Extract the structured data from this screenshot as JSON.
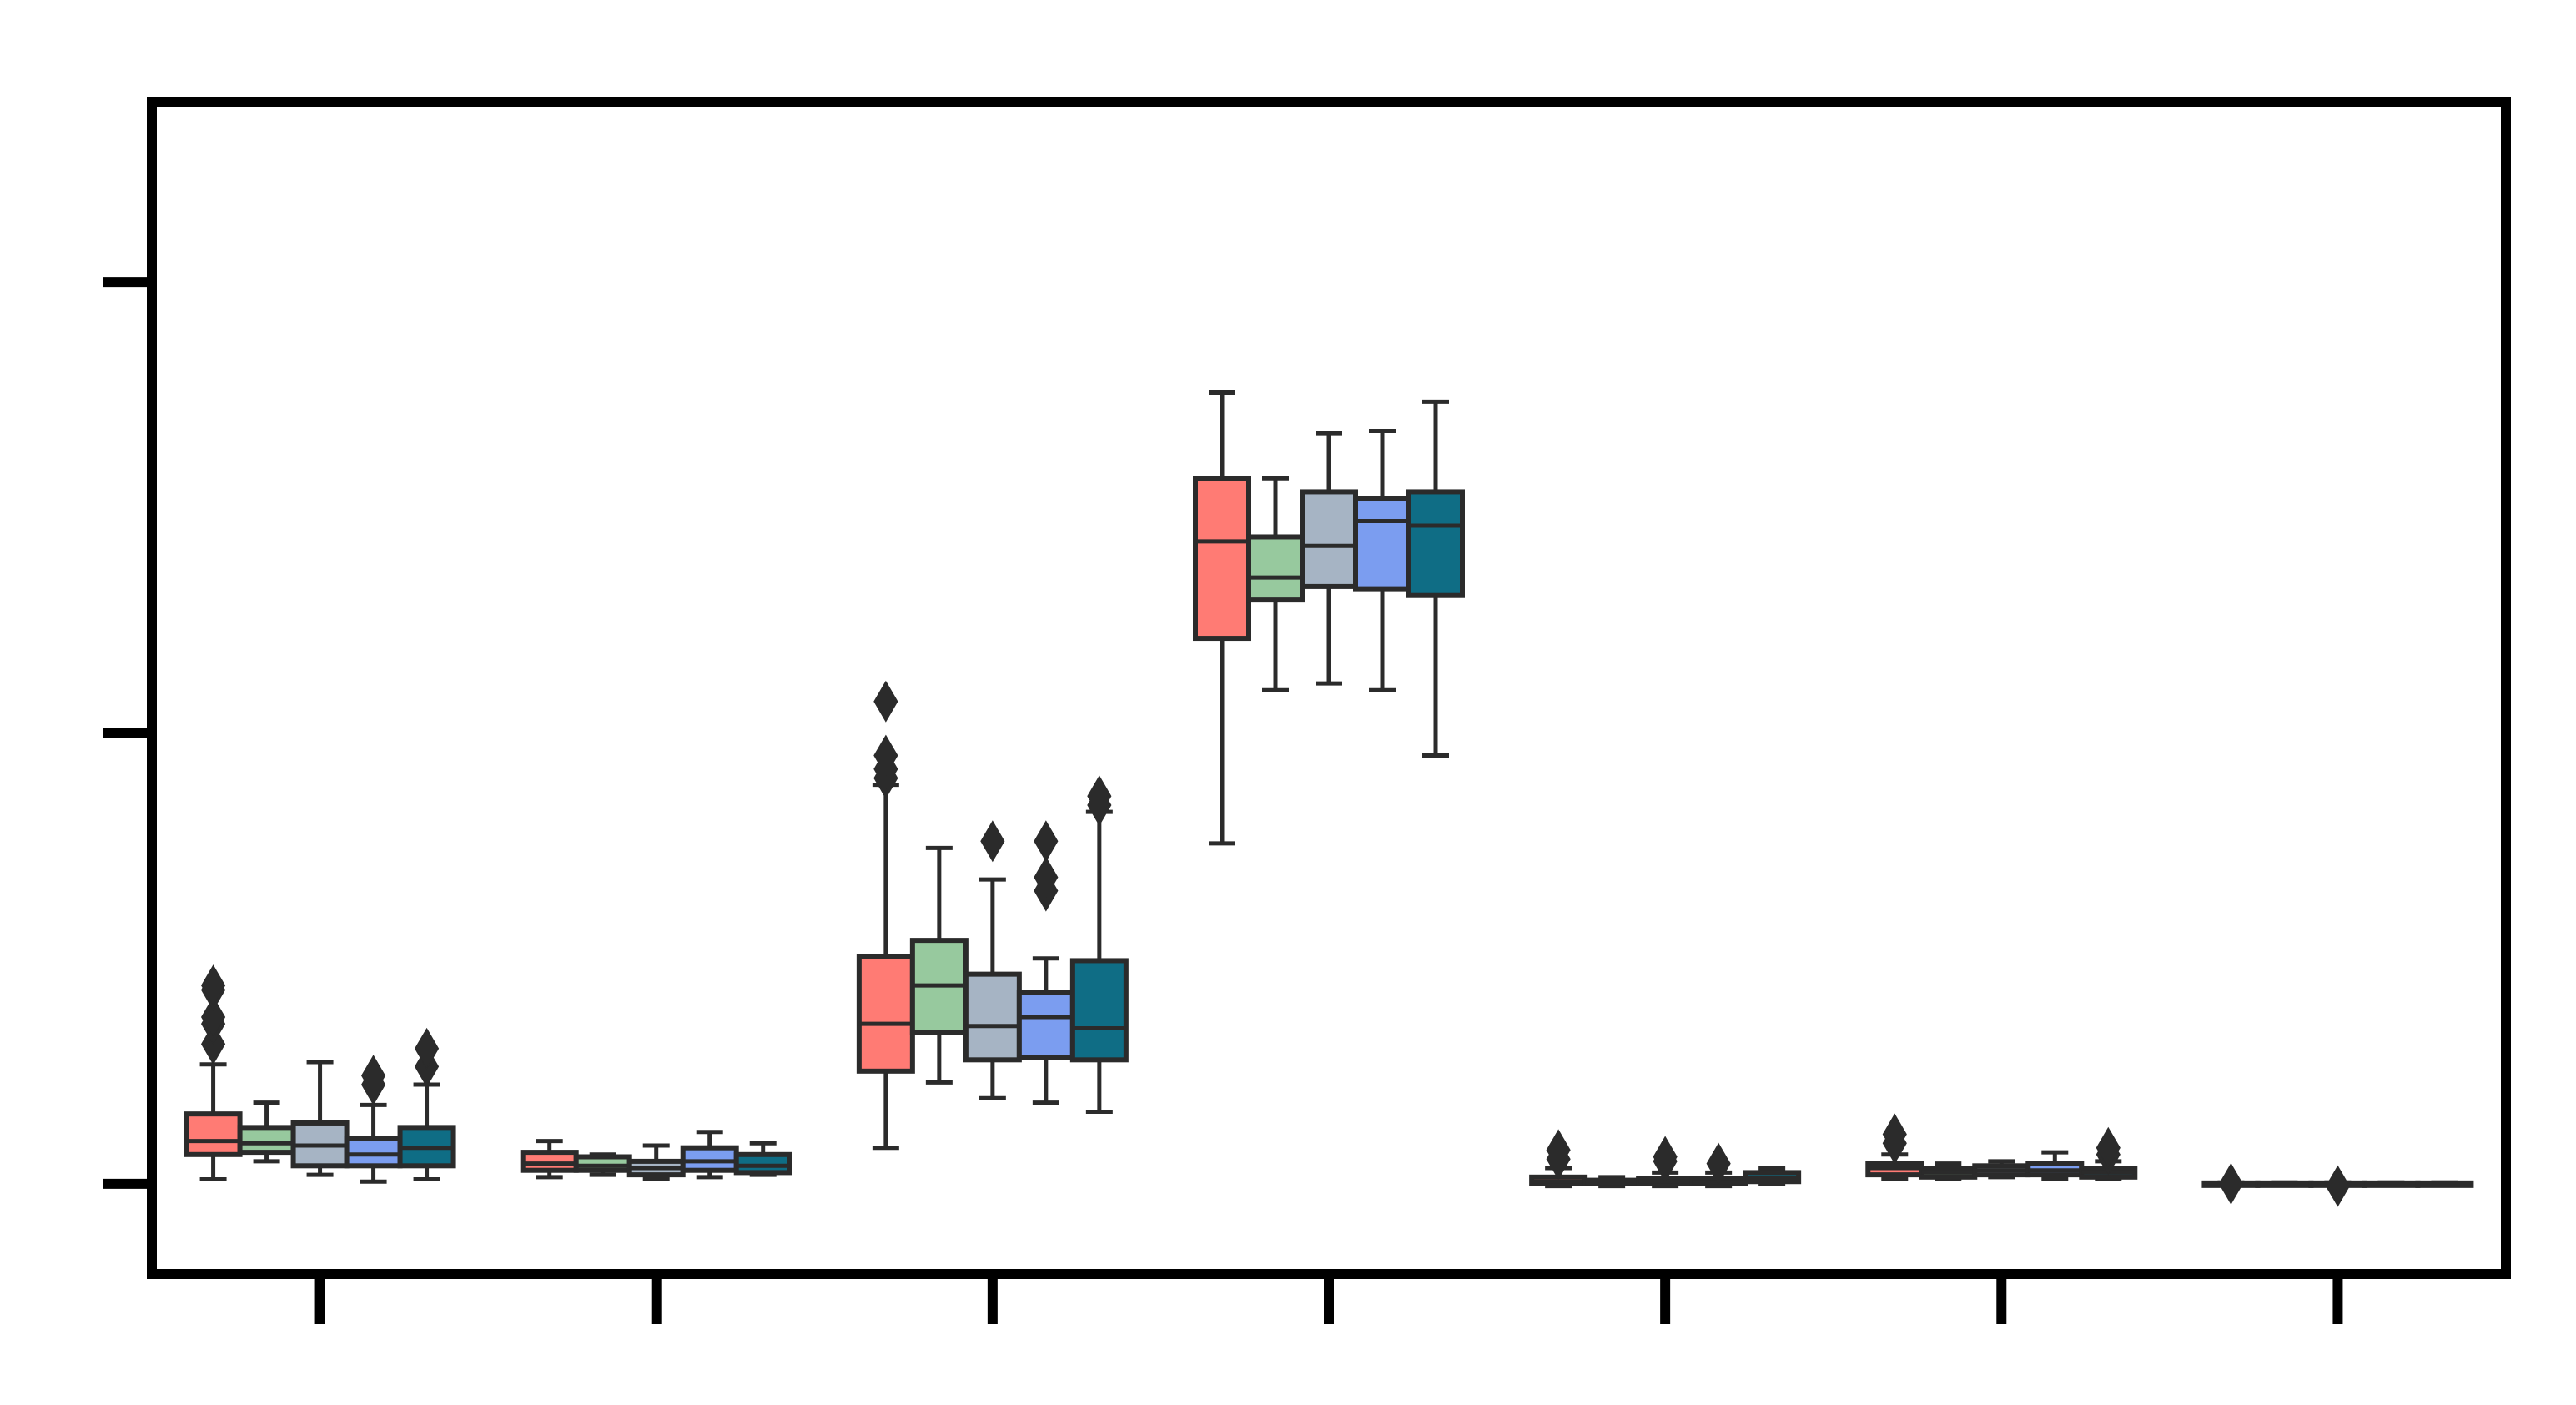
{
  "chart_data": {
    "type": "box",
    "title": "",
    "xlabel": "",
    "ylabel": "",
    "xticks": 7,
    "yticks": [
      0,
      1,
      2
    ],
    "ylim": [
      -0.2,
      2.4
    ],
    "grid": false,
    "legend": "none",
    "colors": [
      "#ff7b74",
      "#97c99e",
      "#a6b4c4",
      "#7b9df0",
      "#0f6d85"
    ],
    "groups": [
      {
        "boxes": [
          {
            "whisker_low": 0.01,
            "q1": 0.065,
            "median": 0.095,
            "q3": 0.155,
            "whisker_high": 0.265,
            "outliers": [
              0.31,
              0.355,
              0.37,
              0.43,
              0.44
            ]
          },
          {
            "whisker_low": 0.05,
            "q1": 0.07,
            "median": 0.09,
            "q3": 0.125,
            "whisker_high": 0.18,
            "outliers": []
          },
          {
            "whisker_low": 0.02,
            "q1": 0.04,
            "median": 0.085,
            "q3": 0.135,
            "whisker_high": 0.27,
            "outliers": []
          },
          {
            "whisker_low": 0.005,
            "q1": 0.04,
            "median": 0.065,
            "q3": 0.1,
            "whisker_high": 0.175,
            "outliers": [
              0.22,
              0.24
            ]
          },
          {
            "whisker_low": 0.01,
            "q1": 0.04,
            "median": 0.08,
            "q3": 0.125,
            "whisker_high": 0.22,
            "outliers": [
              0.26,
              0.3
            ]
          }
        ]
      },
      {
        "boxes": [
          {
            "whisker_low": 0.015,
            "q1": 0.03,
            "median": 0.045,
            "q3": 0.07,
            "whisker_high": 0.095,
            "outliers": []
          },
          {
            "whisker_low": 0.02,
            "q1": 0.03,
            "median": 0.04,
            "q3": 0.06,
            "whisker_high": 0.065,
            "outliers": []
          },
          {
            "whisker_low": 0.01,
            "q1": 0.02,
            "median": 0.035,
            "q3": 0.05,
            "whisker_high": 0.085,
            "outliers": []
          },
          {
            "whisker_low": 0.015,
            "q1": 0.03,
            "median": 0.05,
            "q3": 0.08,
            "whisker_high": 0.115,
            "outliers": []
          },
          {
            "whisker_low": 0.02,
            "q1": 0.025,
            "median": 0.04,
            "q3": 0.065,
            "whisker_high": 0.09,
            "outliers": []
          }
        ]
      },
      {
        "boxes": [
          {
            "whisker_low": 0.08,
            "q1": 0.25,
            "median": 0.355,
            "q3": 0.505,
            "whisker_high": 0.885,
            "outliers": [
              0.9,
              0.92,
              0.95,
              1.07
            ]
          },
          {
            "whisker_low": 0.225,
            "q1": 0.335,
            "median": 0.44,
            "q3": 0.54,
            "whisker_high": 0.745,
            "outliers": []
          },
          {
            "whisker_low": 0.19,
            "q1": 0.275,
            "median": 0.35,
            "q3": 0.465,
            "whisker_high": 0.675,
            "outliers": [
              0.76
            ]
          },
          {
            "whisker_low": 0.18,
            "q1": 0.28,
            "median": 0.37,
            "q3": 0.425,
            "whisker_high": 0.5,
            "outliers": [
              0.65,
              0.68,
              0.76
            ]
          },
          {
            "whisker_low": 0.16,
            "q1": 0.275,
            "median": 0.345,
            "q3": 0.495,
            "whisker_high": 0.825,
            "outliers": [
              0.84,
              0.86
            ]
          }
        ]
      },
      {
        "boxes": [
          {
            "whisker_low": 0.755,
            "q1": 1.21,
            "median": 1.425,
            "q3": 1.565,
            "whisker_high": 1.755,
            "outliers": []
          },
          {
            "whisker_low": 1.095,
            "q1": 1.295,
            "median": 1.345,
            "q3": 1.435,
            "whisker_high": 1.565,
            "outliers": []
          },
          {
            "whisker_low": 1.11,
            "q1": 1.325,
            "median": 1.415,
            "q3": 1.535,
            "whisker_high": 1.665,
            "outliers": []
          },
          {
            "whisker_low": 1.095,
            "q1": 1.32,
            "median": 1.47,
            "q3": 1.52,
            "whisker_high": 1.67,
            "outliers": []
          },
          {
            "whisker_low": 0.95,
            "q1": 1.305,
            "median": 1.46,
            "q3": 1.535,
            "whisker_high": 1.735,
            "outliers": []
          }
        ]
      },
      {
        "boxes": [
          {
            "whisker_low": -0.005,
            "q1": 0.0,
            "median": 0.005,
            "q3": 0.015,
            "whisker_high": 0.035,
            "outliers": [
              0.055,
              0.075
            ]
          },
          {
            "whisker_low": -0.005,
            "q1": 0.0,
            "median": 0.002,
            "q3": 0.008,
            "whisker_high": 0.015,
            "outliers": []
          },
          {
            "whisker_low": -0.005,
            "q1": 0.0,
            "median": 0.005,
            "q3": 0.012,
            "whisker_high": 0.025,
            "outliers": [
              0.05,
              0.06
            ]
          },
          {
            "whisker_low": -0.005,
            "q1": 0.0,
            "median": 0.004,
            "q3": 0.012,
            "whisker_high": 0.025,
            "outliers": [
              0.045
            ]
          },
          {
            "whisker_low": 0.0,
            "q1": 0.005,
            "median": 0.012,
            "q3": 0.025,
            "whisker_high": 0.035,
            "outliers": []
          }
        ]
      },
      {
        "boxes": [
          {
            "whisker_low": 0.01,
            "q1": 0.02,
            "median": 0.035,
            "q3": 0.045,
            "whisker_high": 0.065,
            "outliers": [
              0.09,
              0.11
            ]
          },
          {
            "whisker_low": 0.01,
            "q1": 0.015,
            "median": 0.025,
            "q3": 0.035,
            "whisker_high": 0.045,
            "outliers": []
          },
          {
            "whisker_low": 0.015,
            "q1": 0.02,
            "median": 0.03,
            "q3": 0.04,
            "whisker_high": 0.05,
            "outliers": []
          },
          {
            "whisker_low": 0.01,
            "q1": 0.02,
            "median": 0.03,
            "q3": 0.045,
            "whisker_high": 0.07,
            "outliers": []
          },
          {
            "whisker_low": 0.01,
            "q1": 0.015,
            "median": 0.025,
            "q3": 0.035,
            "whisker_high": 0.05,
            "outliers": [
              0.065,
              0.08
            ]
          }
        ]
      },
      {
        "boxes": [
          {
            "whisker_low": -0.003,
            "q1": -0.002,
            "median": 0.0,
            "q3": 0.002,
            "whisker_high": 0.003,
            "outliers": [
              0.0
            ]
          },
          {
            "whisker_low": -0.003,
            "q1": -0.002,
            "median": 0.0,
            "q3": 0.002,
            "whisker_high": 0.003,
            "outliers": []
          },
          {
            "whisker_low": -0.003,
            "q1": -0.002,
            "median": 0.0,
            "q3": 0.002,
            "whisker_high": 0.003,
            "outliers": [
              -0.005
            ]
          },
          {
            "whisker_low": -0.003,
            "q1": -0.002,
            "median": 0.0,
            "q3": 0.002,
            "whisker_high": 0.003,
            "outliers": []
          },
          {
            "whisker_low": -0.003,
            "q1": -0.002,
            "median": 0.0,
            "q3": 0.002,
            "whisker_high": 0.003,
            "outliers": []
          }
        ]
      }
    ]
  }
}
